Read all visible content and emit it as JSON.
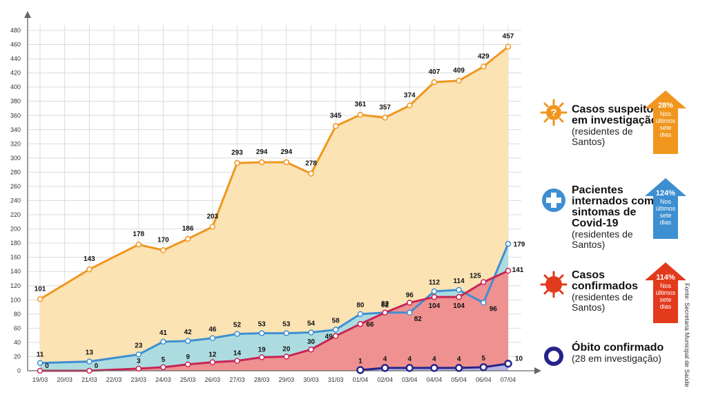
{
  "chart_data": {
    "type": "area",
    "categories": [
      "19/03",
      "20/03",
      "21/03",
      "22/03",
      "23/03",
      "24/03",
      "25/03",
      "26/03",
      "27/03",
      "28/03",
      "29/03",
      "30/03",
      "31/03",
      "01/04",
      "02/04",
      "03/04",
      "04/04",
      "05/04",
      "06/04",
      "07/04"
    ],
    "yticks": [
      0,
      20,
      40,
      60,
      80,
      100,
      120,
      140,
      160,
      180,
      200,
      220,
      240,
      260,
      280,
      300,
      320,
      340,
      360,
      380,
      400,
      420,
      440,
      460,
      480
    ],
    "ylim": [
      0,
      480
    ],
    "grid": true,
    "series": [
      {
        "key": "suspeitos",
        "points": [
          [
            0,
            101
          ],
          [
            2,
            143
          ],
          [
            4,
            178
          ],
          [
            5,
            170
          ],
          [
            6,
            186
          ],
          [
            7,
            203
          ],
          [
            8,
            293
          ],
          [
            9,
            294
          ],
          [
            10,
            294
          ],
          [
            11,
            278
          ],
          [
            12,
            345
          ],
          [
            13,
            361
          ],
          [
            14,
            357
          ],
          [
            15,
            374
          ],
          [
            16,
            407
          ],
          [
            17,
            409
          ],
          [
            18,
            429
          ],
          [
            19,
            457
          ]
        ],
        "color": "#f0961e",
        "fill": "#fbe3b4"
      },
      {
        "key": "internados",
        "points": [
          [
            0,
            11
          ],
          [
            2,
            13
          ],
          [
            4,
            23
          ],
          [
            5,
            41
          ],
          [
            6,
            42
          ],
          [
            7,
            46
          ],
          [
            8,
            52
          ],
          [
            9,
            53
          ],
          [
            10,
            53
          ],
          [
            11,
            54
          ],
          [
            12,
            58
          ],
          [
            13,
            80
          ],
          [
            14,
            82
          ],
          [
            15,
            82
          ],
          [
            16,
            112
          ],
          [
            17,
            114
          ],
          [
            18,
            96
          ],
          [
            19,
            179
          ]
        ],
        "color": "#3d8fd1",
        "fill": "#a9dbe3"
      },
      {
        "key": "confirmados",
        "points": [
          [
            0,
            0
          ],
          [
            2,
            0
          ],
          [
            4,
            3
          ],
          [
            5,
            5
          ],
          [
            6,
            9
          ],
          [
            7,
            12
          ],
          [
            8,
            14
          ],
          [
            9,
            19
          ],
          [
            10,
            20
          ],
          [
            11,
            30
          ],
          [
            12,
            49
          ],
          [
            13,
            66
          ],
          [
            14,
            82
          ],
          [
            15,
            96
          ],
          [
            16,
            104
          ],
          [
            17,
            104
          ],
          [
            18,
            125
          ],
          [
            19,
            141
          ]
        ],
        "color": "#c72455",
        "fill": "#ee9190"
      },
      {
        "key": "obitos",
        "points": [
          [
            13,
            1
          ],
          [
            14,
            4
          ],
          [
            15,
            4
          ],
          [
            16,
            4
          ],
          [
            17,
            4
          ],
          [
            18,
            5
          ],
          [
            19,
            10
          ]
        ],
        "color": "#27238a",
        "fill": "#b7b4e4"
      }
    ]
  },
  "legend": {
    "suspeitos": {
      "title": "Casos suspeitos em investigação",
      "sub": "(residentes de Santos)",
      "pct": "28%",
      "note": "Nos últimos sete dias",
      "color": "#f0961e",
      "icon": "question-virus-icon"
    },
    "internados": {
      "title": "Pacientes internados com sintomas de Covid-19",
      "sub": "(residentes de Santos)",
      "pct": "124%",
      "note": "Nos últimos sete dias",
      "color": "#3d8fd1",
      "icon": "plus-cross-icon"
    },
    "confirmados": {
      "title": "Casos confirmados",
      "sub": "(residentes de Santos)",
      "pct": "114%",
      "note": "Nos últimos sete dias",
      "color": "#e23a1d",
      "icon": "red-virus-icon"
    },
    "obitos": {
      "title": "Óbito confirmado",
      "sub": "(28 em investigação)",
      "color": "#27238a",
      "icon": "ring-icon"
    }
  },
  "source": "Fonte: Secretaria Municipal de Saúde"
}
